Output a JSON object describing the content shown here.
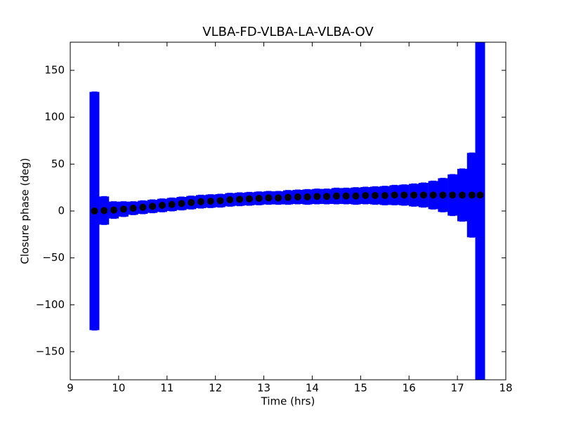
{
  "chart_data": {
    "type": "errorbar_scatter",
    "title": "VLBA-FD-VLBA-LA-VLBA-OV",
    "x_label": "Time (hrs)",
    "y_label": "Closure phase (deg)",
    "xlim": [
      9,
      18
    ],
    "ylim": [
      -180,
      180
    ],
    "xticks": [
      9,
      10,
      11,
      12,
      13,
      14,
      15,
      16,
      17,
      18
    ],
    "yticks": [
      {
        "value": -150,
        "label": "−150"
      },
      {
        "value": -100,
        "label": "−100"
      },
      {
        "value": -50,
        "label": "−50"
      },
      0,
      50,
      100,
      150
    ],
    "marker_color": "#000000",
    "error_color": "#0000ff",
    "x": [
      9.5,
      9.7,
      9.9,
      10.1,
      10.3,
      10.5,
      10.7,
      10.9,
      11.1,
      11.3,
      11.5,
      11.7,
      11.9,
      12.1,
      12.3,
      12.5,
      12.7,
      12.9,
      13.1,
      13.3,
      13.5,
      13.7,
      13.9,
      14.1,
      14.3,
      14.5,
      14.7,
      14.9,
      15.1,
      15.3,
      15.5,
      15.7,
      15.9,
      16.1,
      16.3,
      16.5,
      16.7,
      16.9,
      17.1,
      17.3,
      17.47
    ],
    "values": [
      0,
      0.5,
      1,
      2,
      3,
      4,
      5,
      6,
      7,
      8,
      9,
      10,
      10.5,
      11,
      12,
      12.5,
      13,
      13.5,
      14,
      14,
      14.5,
      15,
      15,
      15.5,
      15.5,
      16,
      16,
      16,
      16.5,
      16.5,
      16.5,
      17,
      17,
      17,
      17,
      17,
      17,
      17,
      17,
      17,
      17
    ],
    "errors": [
      127,
      15,
      9,
      8,
      7,
      7,
      7,
      7,
      7,
      7,
      7,
      7,
      7,
      7,
      7,
      7,
      7,
      7,
      7,
      7,
      7.5,
      7.5,
      8,
      8,
      8,
      8.5,
      8.5,
      9,
      9,
      9.5,
      10,
      10.5,
      11,
      12,
      13,
      15,
      18,
      22,
      28,
      45,
      200
    ]
  }
}
